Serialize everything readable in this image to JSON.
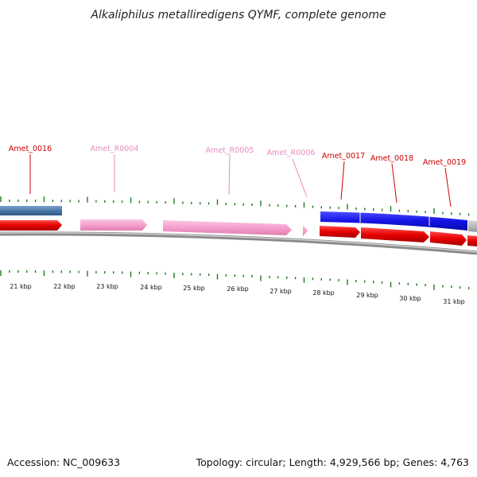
{
  "header": {
    "title": "Alkaliphilus metalliredigens QYMF, complete genome"
  },
  "footer": {
    "accession": "Accession: NC_009633",
    "summary": "Topology: circular; Length: 4,929,566 bp; Genes: 4,763"
  },
  "scale": {
    "labels": [
      "21 kbp",
      "22 kbp",
      "23 kbp",
      "24 kbp",
      "25 kbp",
      "26 kbp",
      "27 kbp",
      "28 kbp",
      "29 kbp",
      "30 kbp",
      "31 kbp"
    ]
  },
  "gene_labels": [
    {
      "id": "Amet_0016",
      "color": "#cc0000"
    },
    {
      "id": "Amet_R0004",
      "color": "#e88cc0"
    },
    {
      "id": "Amet_R0005",
      "color": "#e88cc0"
    },
    {
      "id": "Amet_R0006",
      "color": "#e88cc0"
    },
    {
      "id": "Amet_0017",
      "color": "#cc0000"
    },
    {
      "id": "Amet_0018",
      "color": "#cc0000"
    },
    {
      "id": "Amet_0019",
      "color": "#cc0000"
    }
  ],
  "colors": {
    "cds": "#ee1111",
    "rna": "#f4a6cf",
    "cog_steel": "#4f7fb0",
    "cog_blue": "#1a1aee",
    "tick": "#1f7a1f",
    "backbone": "#777777"
  }
}
